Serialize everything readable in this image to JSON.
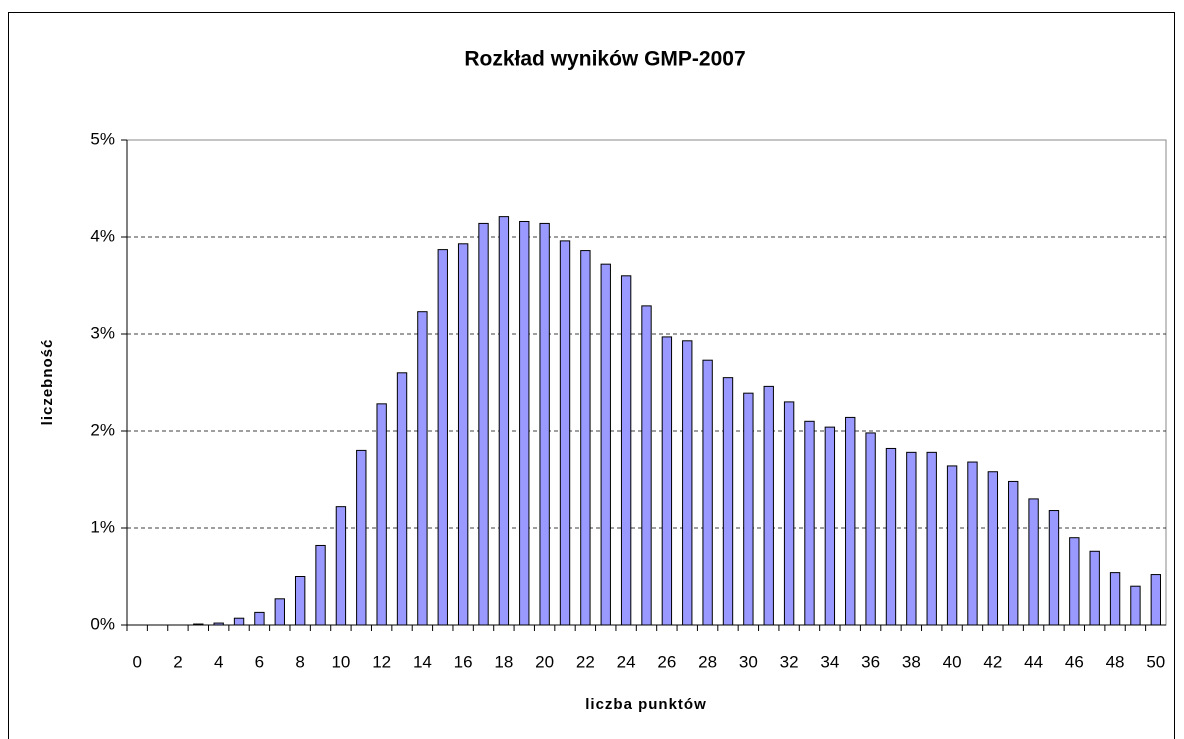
{
  "chart_data": {
    "type": "bar",
    "title": "Rozkład wyników  GMP-2007",
    "x_label": "liczba punktów",
    "y_label": "liczebność",
    "categories": [
      0,
      null,
      2,
      null,
      4,
      null,
      6,
      null,
      8,
      null,
      10,
      null,
      12,
      null,
      14,
      null,
      16,
      null,
      18,
      null,
      20,
      null,
      22,
      null,
      24,
      null,
      26,
      null,
      28,
      null,
      30,
      null,
      32,
      null,
      34,
      null,
      36,
      null,
      38,
      null,
      40,
      null,
      42,
      null,
      44,
      null,
      46,
      null,
      48,
      null,
      50
    ],
    "values": [
      0,
      0,
      0,
      0.01,
      0.02,
      0.07,
      0.13,
      0.27,
      0.5,
      0.82,
      1.22,
      1.8,
      2.28,
      2.6,
      3.23,
      3.87,
      3.93,
      4.14,
      4.21,
      4.16,
      4.14,
      3.96,
      3.86,
      3.72,
      3.6,
      3.29,
      2.97,
      2.93,
      2.73,
      2.55,
      2.39,
      2.46,
      2.3,
      2.1,
      2.04,
      2.14,
      1.98,
      1.82,
      1.78,
      1.78,
      1.64,
      1.68,
      1.58,
      1.48,
      1.3,
      1.18,
      0.9,
      0.76,
      0.54,
      0.4,
      0.52
    ],
    "color": "#9999ff",
    "ylim": [
      0,
      5
    ],
    "yticks": [
      {
        "value": 0,
        "label": "0%"
      },
      {
        "value": 1,
        "label": "1%"
      },
      {
        "value": 2,
        "label": "2%"
      },
      {
        "value": 3,
        "label": "3%"
      },
      {
        "value": 4,
        "label": "4%"
      },
      {
        "value": 5,
        "label": "5%"
      }
    ],
    "grid": true
  }
}
